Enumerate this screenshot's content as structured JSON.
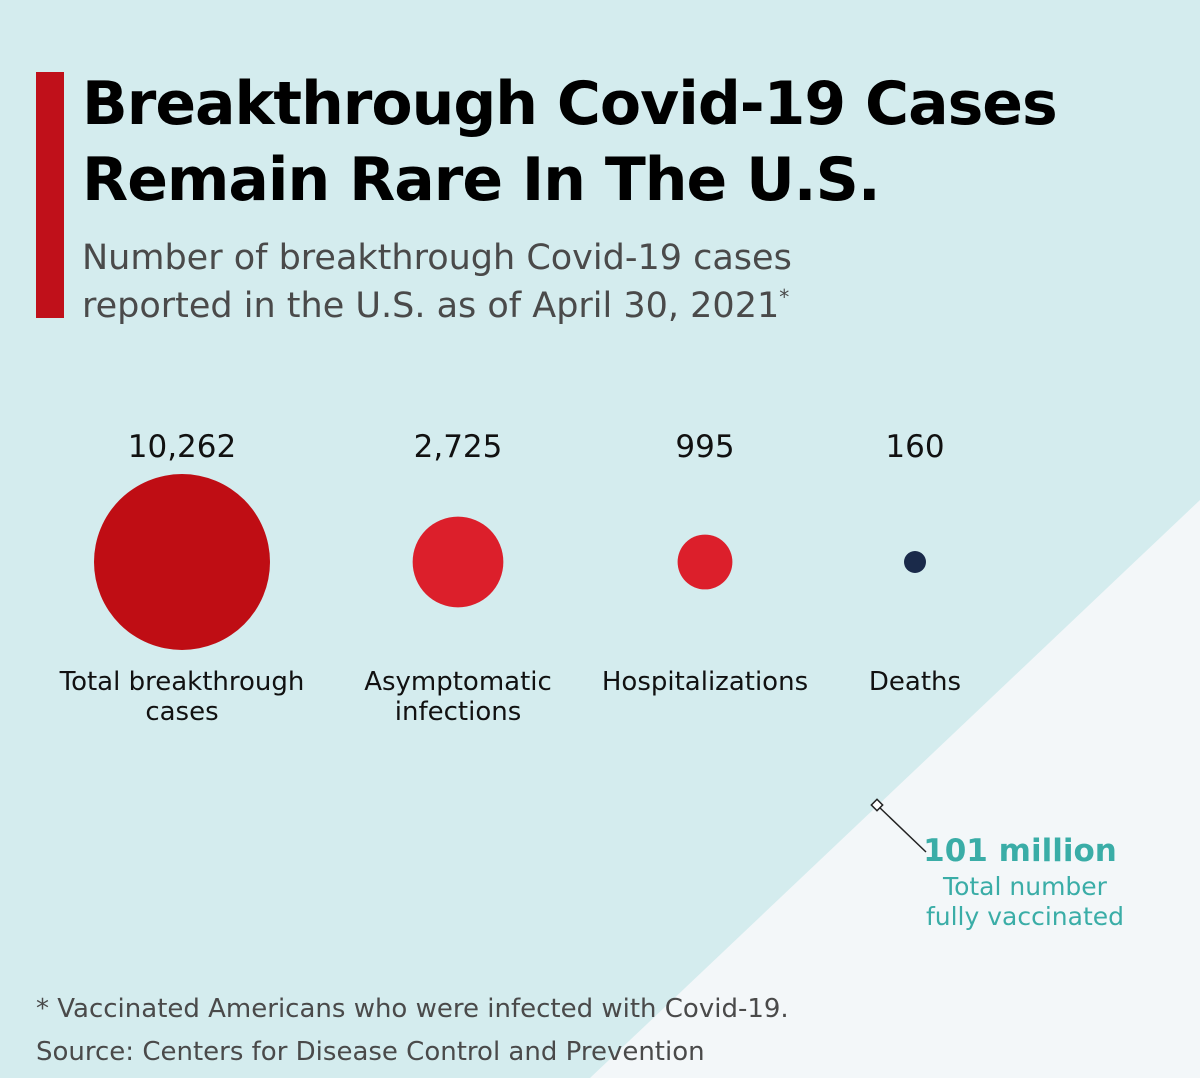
{
  "colors": {
    "background": "#d4ecee",
    "triangle": "#f3f7f9",
    "accent": "#c0101a",
    "large_bubble": "#bf0d14",
    "small_bubble": "#dc1f2b",
    "deaths_dot": "#1a2a4a",
    "annotation": "#3aada7"
  },
  "header": {
    "title_line1": "Breakthrough Covid-19 Cases",
    "title_line2": "Remain Rare In The U.S.",
    "subtitle_line1": "Number of breakthrough Covid-19 cases",
    "subtitle_line2": "reported in the U.S. as of April 30, 2021",
    "subtitle_marker": "*"
  },
  "chart_data": {
    "type": "bubble",
    "title": "Breakthrough Covid-19 Cases Remain Rare In The U.S.",
    "subtitle": "Number of breakthrough Covid-19 cases reported in the U.S. as of April 30, 2021*",
    "categories": [
      {
        "label_lines": [
          "Total breakthrough",
          "cases"
        ],
        "value": 10262,
        "value_label": "10,262",
        "color": "#bf0d14"
      },
      {
        "label_lines": [
          "Asymptomatic",
          "infections"
        ],
        "value": 2725,
        "value_label": "2,725",
        "color": "#dc1f2b"
      },
      {
        "label_lines": [
          "Hospitalizations"
        ],
        "value": 995,
        "value_label": "995",
        "color": "#dc1f2b"
      },
      {
        "label_lines": [
          "Deaths"
        ],
        "value": 160,
        "value_label": "160",
        "color": "#1a2a4a"
      }
    ],
    "annotation": {
      "value": 101000000,
      "value_label": "101 million",
      "label_line1": "Total number",
      "label_line2": "fully vaccinated"
    }
  },
  "footer": {
    "note": "* Vaccinated Americans who were infected with Covid-19.",
    "source": "Source: Centers for Disease Control and Prevention"
  }
}
